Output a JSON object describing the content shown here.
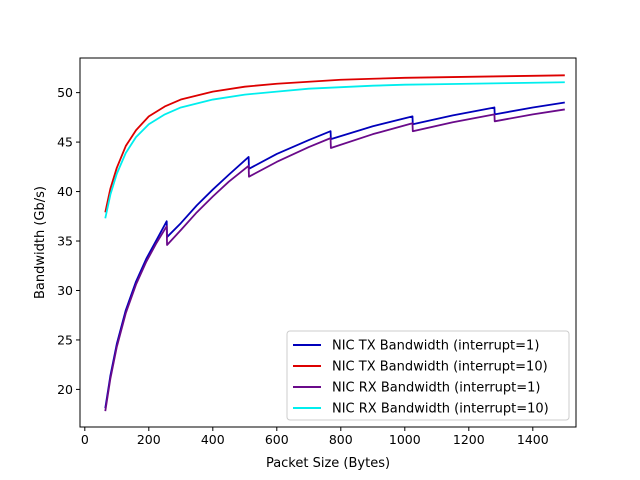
{
  "chart_data": {
    "type": "line",
    "title": "",
    "xlabel": "Packet Size (Bytes)",
    "ylabel": "Bandwidth (Gb/s)",
    "xlim": [
      -15,
      1535
    ],
    "ylim": [
      16.2,
      53.5
    ],
    "xticks": [
      0,
      200,
      400,
      600,
      800,
      1000,
      1200,
      1400
    ],
    "yticks": [
      20,
      25,
      30,
      35,
      40,
      45,
      50
    ],
    "grid": false,
    "legend_position": "lower-right",
    "series": [
      {
        "name": "NIC TX Bandwidth (interrupt=1)",
        "color": "#0000bb",
        "points": [
          [
            64,
            18.1
          ],
          [
            80,
            21.4
          ],
          [
            100,
            24.6
          ],
          [
            128,
            28.0
          ],
          [
            160,
            30.9
          ],
          [
            192,
            33.2
          ],
          [
            224,
            35.1
          ],
          [
            256,
            37.0
          ],
          [
            257,
            35.4
          ],
          [
            300,
            36.8
          ],
          [
            350,
            38.6
          ],
          [
            400,
            40.2
          ],
          [
            450,
            41.7
          ],
          [
            512,
            43.5
          ],
          [
            513,
            42.3
          ],
          [
            600,
            43.8
          ],
          [
            700,
            45.2
          ],
          [
            768,
            46.1
          ],
          [
            769,
            45.3
          ],
          [
            900,
            46.6
          ],
          [
            1024,
            47.6
          ],
          [
            1025,
            46.8
          ],
          [
            1150,
            47.7
          ],
          [
            1280,
            48.5
          ],
          [
            1281,
            47.8
          ],
          [
            1400,
            48.5
          ],
          [
            1500,
            49.0
          ]
        ]
      },
      {
        "name": "NIC TX Bandwidth (interrupt=10)",
        "color": "#dd0000",
        "points": [
          [
            64,
            37.9
          ],
          [
            80,
            40.3
          ],
          [
            100,
            42.4
          ],
          [
            128,
            44.6
          ],
          [
            160,
            46.2
          ],
          [
            200,
            47.6
          ],
          [
            250,
            48.6
          ],
          [
            300,
            49.3
          ],
          [
            400,
            50.1
          ],
          [
            500,
            50.6
          ],
          [
            600,
            50.9
          ],
          [
            700,
            51.1
          ],
          [
            800,
            51.3
          ],
          [
            900,
            51.4
          ],
          [
            1000,
            51.5
          ],
          [
            1100,
            51.55
          ],
          [
            1200,
            51.6
          ],
          [
            1300,
            51.65
          ],
          [
            1400,
            51.7
          ],
          [
            1500,
            51.75
          ]
        ]
      },
      {
        "name": "NIC RX Bandwidth (interrupt=1)",
        "color": "#6a0a8a",
        "points": [
          [
            64,
            17.8
          ],
          [
            80,
            21.1
          ],
          [
            100,
            24.3
          ],
          [
            128,
            27.7
          ],
          [
            160,
            30.6
          ],
          [
            192,
            32.9
          ],
          [
            224,
            34.8
          ],
          [
            256,
            36.5
          ],
          [
            257,
            34.6
          ],
          [
            300,
            36.1
          ],
          [
            350,
            37.9
          ],
          [
            400,
            39.5
          ],
          [
            450,
            41.0
          ],
          [
            512,
            42.6
          ],
          [
            513,
            41.5
          ],
          [
            600,
            43.0
          ],
          [
            700,
            44.5
          ],
          [
            768,
            45.4
          ],
          [
            769,
            44.4
          ],
          [
            900,
            45.8
          ],
          [
            1024,
            46.9
          ],
          [
            1025,
            46.1
          ],
          [
            1150,
            47.0
          ],
          [
            1280,
            47.8
          ],
          [
            1281,
            47.1
          ],
          [
            1400,
            47.8
          ],
          [
            1500,
            48.3
          ]
        ]
      },
      {
        "name": "NIC RX Bandwidth (interrupt=10)",
        "color": "#00eeee",
        "points": [
          [
            64,
            37.3
          ],
          [
            80,
            39.7
          ],
          [
            100,
            41.8
          ],
          [
            128,
            43.9
          ],
          [
            160,
            45.5
          ],
          [
            200,
            46.8
          ],
          [
            250,
            47.8
          ],
          [
            300,
            48.5
          ],
          [
            400,
            49.3
          ],
          [
            500,
            49.8
          ],
          [
            600,
            50.1
          ],
          [
            700,
            50.4
          ],
          [
            800,
            50.55
          ],
          [
            900,
            50.7
          ],
          [
            1000,
            50.8
          ],
          [
            1100,
            50.85
          ],
          [
            1200,
            50.9
          ],
          [
            1300,
            50.95
          ],
          [
            1400,
            51.0
          ],
          [
            1500,
            51.05
          ]
        ]
      }
    ]
  }
}
